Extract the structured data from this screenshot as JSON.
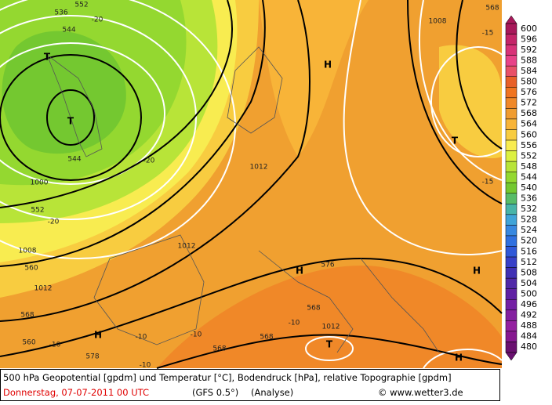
{
  "map_labels": [
    "552",
    "536",
    "-20",
    "544",
    "T",
    "T",
    "544",
    "-20",
    "1000",
    "552",
    "-20",
    "1008",
    "560",
    "1012",
    "568",
    "560",
    "-10",
    "578",
    "H",
    "-10",
    "-10",
    "-10",
    "568",
    "568",
    "568",
    "-10",
    "1012",
    "T",
    "H",
    "576",
    "1012",
    "1012",
    "H",
    "1008",
    "568",
    "-15",
    "T",
    "-15",
    "H",
    "H"
  ],
  "colorbar": {
    "levels": [
      600,
      596,
      592,
      588,
      584,
      580,
      576,
      572,
      568,
      564,
      560,
      556,
      552,
      548,
      544,
      540,
      536,
      532,
      528,
      524,
      520,
      516,
      512,
      508,
      504,
      500,
      496,
      492,
      488,
      484,
      480
    ],
    "colors": [
      "#a8185a",
      "#c42468",
      "#d83278",
      "#e84288",
      "#e85068",
      "#e86028",
      "#f07420",
      "#f08828",
      "#f09c30",
      "#f8b438",
      "#f8cc40",
      "#f8ec50",
      "#dcf040",
      "#b8e438",
      "#94d830",
      "#74c830",
      "#58bc68",
      "#48b4a8",
      "#40a4d8",
      "#3888e0",
      "#3070e0",
      "#3058d8",
      "#3840c8",
      "#4030b4",
      "#5028a8",
      "#6020a4",
      "#7420a4",
      "#8420a0",
      "#9420a0",
      "#861890",
      "#6a1070"
    ]
  },
  "footer": {
    "line1": "500 hPa Geopotential [gpdm] und Temperatur [°C], Bodendruck [hPa], relative Topographie [gpdm]",
    "date": "Donnerstag, 07-07-2011   00 UTC",
    "model": "(GFS 0.5°)",
    "run": "(Analyse)",
    "copyright": "© www.wetter3.de"
  }
}
